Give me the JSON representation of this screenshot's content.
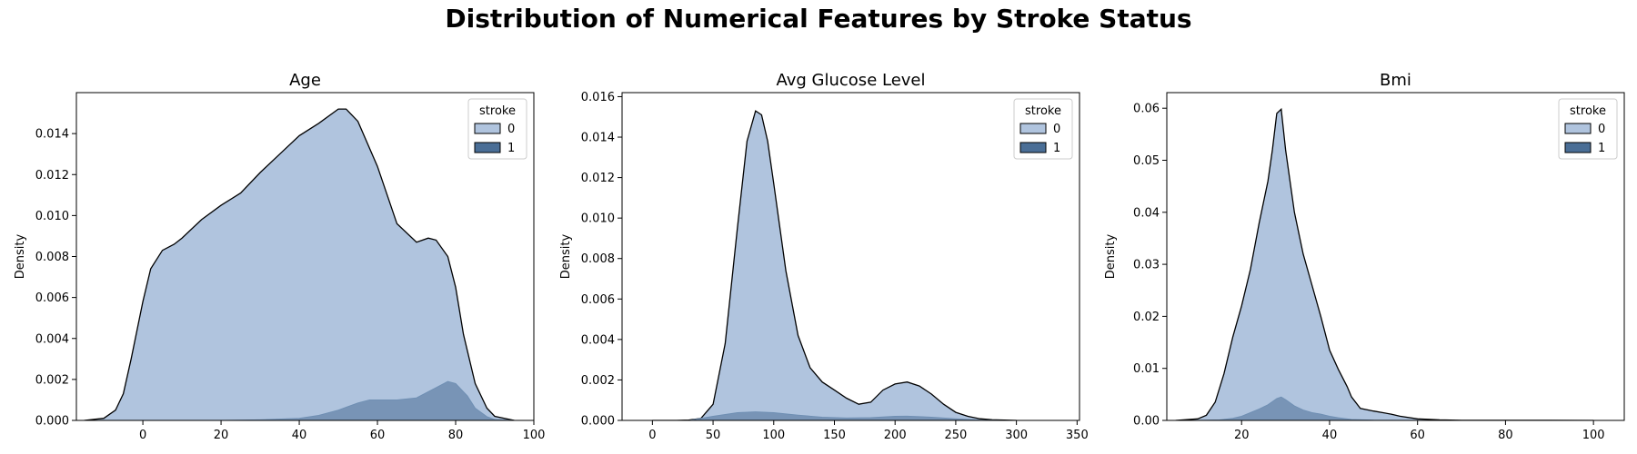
{
  "suptitle": "Distribution of Numerical Features by Stroke Status",
  "colors": {
    "stroke_0": "#b0c4de",
    "stroke_1": "#4a6e96",
    "outline": "#000000",
    "legend_border": "#cccccc"
  },
  "chart_data": [
    {
      "type": "area",
      "title": "Age",
      "xlabel": "",
      "ylabel": "Density",
      "xlim": [
        -17,
        100
      ],
      "ylim": [
        0,
        0.016
      ],
      "xticks": [
        0,
        20,
        40,
        60,
        80,
        100
      ],
      "yticks": [
        0.0,
        0.002,
        0.004,
        0.006,
        0.008,
        0.01,
        0.012,
        0.014
      ],
      "ytick_decimals": 3,
      "legend": {
        "title": "stroke",
        "entries": [
          "0",
          "1"
        ],
        "position": "top-right"
      },
      "series": [
        {
          "name": "0",
          "x": [
            -15,
            -10,
            -7,
            -5,
            -3,
            0,
            2,
            5,
            8,
            10,
            15,
            20,
            25,
            30,
            35,
            40,
            45,
            50,
            52,
            55,
            60,
            65,
            70,
            73,
            75,
            78,
            80,
            82,
            85,
            88,
            90,
            95
          ],
          "y": [
            0,
            0.0001,
            0.0005,
            0.0013,
            0.003,
            0.0058,
            0.0074,
            0.0083,
            0.0086,
            0.0089,
            0.0098,
            0.0105,
            0.0111,
            0.0121,
            0.013,
            0.0139,
            0.0145,
            0.0152,
            0.0152,
            0.0146,
            0.0124,
            0.0096,
            0.0087,
            0.0089,
            0.0088,
            0.008,
            0.0065,
            0.0042,
            0.0018,
            0.0006,
            0.0002,
            0
          ]
        },
        {
          "name": "1",
          "x": [
            0,
            20,
            30,
            40,
            45,
            50,
            55,
            58,
            62,
            65,
            70,
            75,
            78,
            80,
            83,
            85,
            88,
            90,
            95
          ],
          "y": [
            0,
            0,
            3e-05,
            0.0001,
            0.00025,
            0.0005,
            0.00085,
            0.001,
            0.001,
            0.001,
            0.0011,
            0.0016,
            0.0019,
            0.0018,
            0.0012,
            0.0006,
            0.00018,
            5e-05,
            0
          ]
        }
      ]
    },
    {
      "type": "area",
      "title": "Avg Glucose Level",
      "xlabel": "",
      "ylabel": "Density",
      "xlim": [
        -25,
        352
      ],
      "ylim": [
        0,
        0.0162
      ],
      "xticks": [
        0,
        50,
        100,
        150,
        200,
        250,
        300,
        350
      ],
      "yticks": [
        0.0,
        0.002,
        0.004,
        0.006,
        0.008,
        0.01,
        0.012,
        0.014,
        0.016
      ],
      "ytick_decimals": 3,
      "legend": {
        "title": "stroke",
        "entries": [
          "0",
          "1"
        ],
        "position": "top-right"
      },
      "series": [
        {
          "name": "0",
          "x": [
            0,
            20,
            30,
            40,
            50,
            60,
            70,
            78,
            85,
            90,
            95,
            100,
            110,
            120,
            130,
            140,
            150,
            160,
            170,
            180,
            190,
            200,
            210,
            220,
            230,
            240,
            250,
            260,
            270,
            280,
            300
          ],
          "y": [
            0,
            0,
            2e-05,
            0.0001,
            0.0008,
            0.0038,
            0.0095,
            0.0138,
            0.0153,
            0.0151,
            0.0138,
            0.0117,
            0.0074,
            0.0042,
            0.0026,
            0.0019,
            0.0015,
            0.0011,
            0.0008,
            0.0009,
            0.0015,
            0.0018,
            0.0019,
            0.0017,
            0.0013,
            0.0008,
            0.0004,
            0.0002,
            8e-05,
            3e-05,
            0
          ]
        },
        {
          "name": "1",
          "x": [
            30,
            50,
            70,
            85,
            100,
            120,
            140,
            160,
            180,
            200,
            210,
            230,
            250,
            270,
            290
          ],
          "y": [
            0,
            0.0002,
            0.00038,
            0.00042,
            0.00038,
            0.00026,
            0.00016,
            0.00012,
            0.00014,
            0.0002,
            0.00021,
            0.00016,
            8e-05,
            2e-05,
            0
          ]
        }
      ]
    },
    {
      "type": "area",
      "title": "Bmi",
      "xlabel": "",
      "ylabel": "Density",
      "xlim": [
        3,
        107
      ],
      "ylim": [
        0,
        0.063
      ],
      "xticks": [
        20,
        40,
        60,
        80,
        100
      ],
      "yticks": [
        0.0,
        0.01,
        0.02,
        0.03,
        0.04,
        0.05,
        0.06
      ],
      "ytick_decimals": 2,
      "legend": {
        "title": "stroke",
        "entries": [
          "0",
          "1"
        ],
        "position": "top-right"
      },
      "series": [
        {
          "name": "0",
          "x": [
            5,
            10,
            12,
            14,
            16,
            18,
            20,
            22,
            24,
            26,
            27,
            28,
            29,
            30,
            32,
            34,
            36,
            38,
            40,
            42,
            44,
            45,
            47,
            50,
            52,
            54,
            56,
            60,
            65,
            70,
            80,
            90,
            100
          ],
          "y": [
            0,
            0.0003,
            0.001,
            0.0035,
            0.009,
            0.016,
            0.022,
            0.029,
            0.038,
            0.046,
            0.052,
            0.059,
            0.0598,
            0.052,
            0.04,
            0.032,
            0.026,
            0.02,
            0.0135,
            0.0098,
            0.0065,
            0.0045,
            0.0023,
            0.0018,
            0.0015,
            0.0012,
            0.0008,
            0.0003,
            0.0001,
            2e-05,
            1e-05,
            1e-05,
            0
          ]
        },
        {
          "name": "1",
          "x": [
            10,
            15,
            18,
            20,
            22,
            24,
            26,
            28,
            29,
            30,
            32,
            34,
            36,
            38,
            40,
            42,
            45,
            50,
            60
          ],
          "y": [
            0,
            0.0001,
            0.0004,
            0.0008,
            0.0015,
            0.0022,
            0.003,
            0.0042,
            0.0045,
            0.004,
            0.0028,
            0.002,
            0.0015,
            0.0012,
            0.0008,
            0.0005,
            0.0002,
            5e-05,
            0
          ]
        }
      ]
    }
  ]
}
